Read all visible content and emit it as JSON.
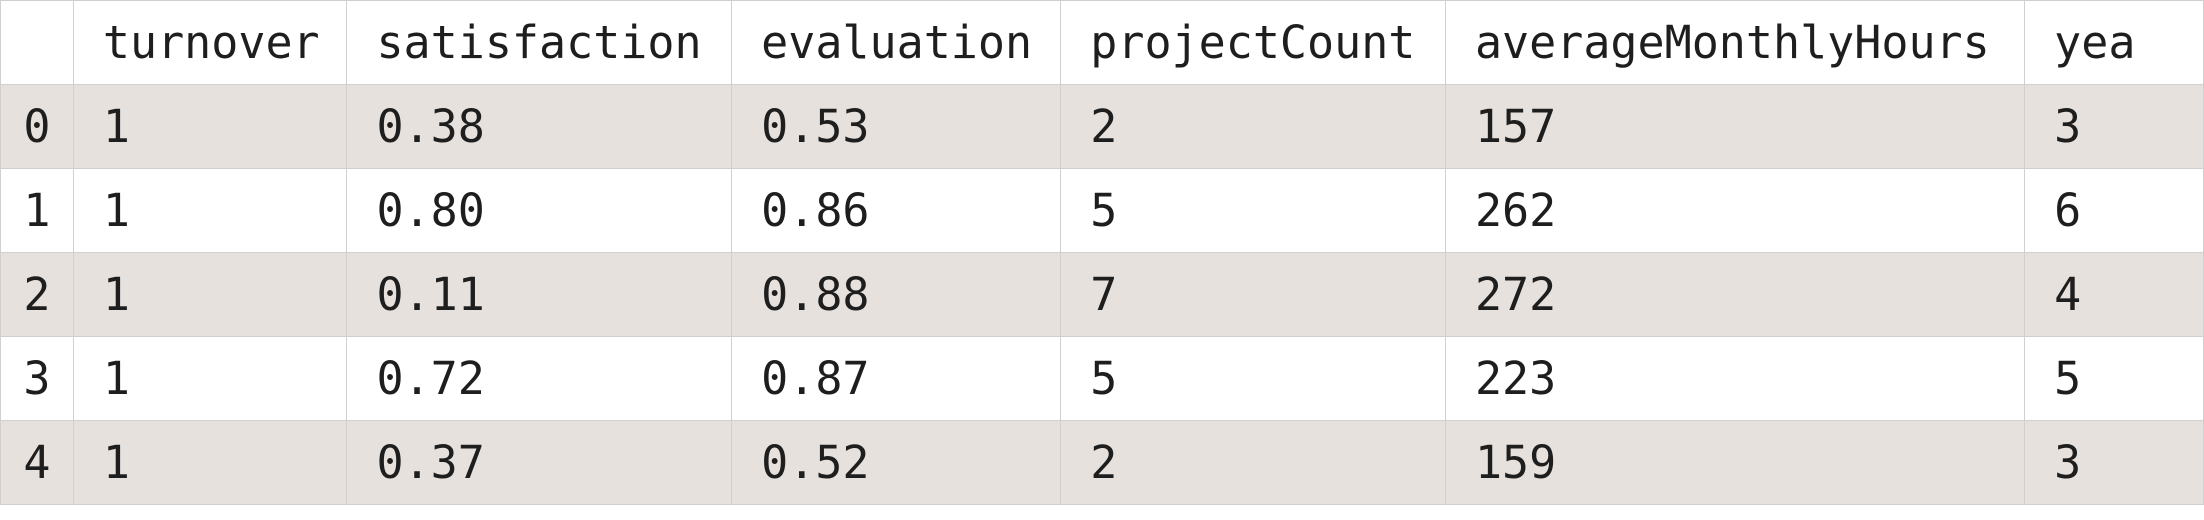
{
  "table": {
    "columns": [
      "",
      "turnover",
      "satisfaction",
      "evaluation",
      "projectCount",
      "averageMonthlyHours",
      "yea"
    ],
    "rows": [
      [
        "0",
        "1",
        "0.38",
        "0.53",
        "2",
        "157",
        "3"
      ],
      [
        "1",
        "1",
        "0.80",
        "0.86",
        "5",
        "262",
        "6"
      ],
      [
        "2",
        "1",
        "0.11",
        "0.88",
        "7",
        "272",
        "4"
      ],
      [
        "3",
        "1",
        "0.72",
        "0.87",
        "5",
        "223",
        "5"
      ],
      [
        "4",
        "1",
        "0.37",
        "0.52",
        "2",
        "159",
        "3"
      ]
    ]
  },
  "colors": {
    "stripe": "#e6e1dd",
    "border": "#d0d0d0",
    "text": "#1e1e1e"
  }
}
